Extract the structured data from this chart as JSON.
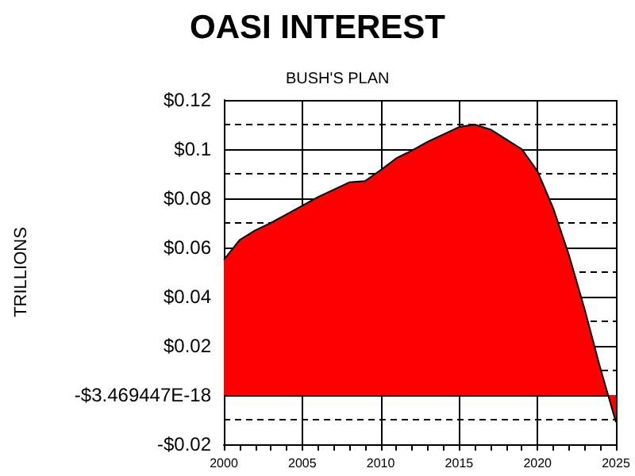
{
  "chart_data": {
    "type": "area",
    "title": "OASI INTEREST",
    "subtitle": "BUSH'S PLAN",
    "ylabel": "TRILLIONS",
    "x": [
      2000,
      2001,
      2002,
      2003,
      2004,
      2005,
      2006,
      2007,
      2008,
      2009,
      2010,
      2011,
      2012,
      2013,
      2014,
      2015,
      2016,
      2017,
      2018,
      2019,
      2020,
      2021,
      2022,
      2023,
      2024,
      2024.5,
      2025
    ],
    "series": [
      {
        "color": "#ff0000",
        "values": [
          0.055,
          0.063,
          0.067,
          0.07,
          0.0735,
          0.077,
          0.0805,
          0.0835,
          0.0865,
          0.087,
          0.0915,
          0.0963,
          0.0995,
          0.103,
          0.106,
          0.109,
          0.11,
          0.108,
          0.104,
          0.1,
          0.091,
          0.076,
          0.057,
          0.035,
          0.011,
          0,
          -0.011
        ]
      }
    ],
    "xlim": [
      2000,
      2025
    ],
    "xticks": [
      2000,
      2005,
      2010,
      2015,
      2020,
      2025
    ],
    "ylim": [
      -0.02,
      0.12
    ],
    "yticks": [
      {
        "value": -0.02,
        "label": "-$0.02"
      },
      {
        "value": -0.01,
        "label": null
      },
      {
        "value": 0,
        "label": "-$3.469447E-18"
      },
      {
        "value": 0.01,
        "label": null
      },
      {
        "value": 0.02,
        "label": "$0.02"
      },
      {
        "value": 0.03,
        "label": null
      },
      {
        "value": 0.04,
        "label": "$0.04"
      },
      {
        "value": 0.05,
        "label": null
      },
      {
        "value": 0.06,
        "label": "$0.06"
      },
      {
        "value": 0.07,
        "label": null
      },
      {
        "value": 0.08,
        "label": "$0.08"
      },
      {
        "value": 0.09,
        "label": null
      },
      {
        "value": 0.1,
        "label": "$0.1"
      },
      {
        "value": 0.11,
        "label": null
      },
      {
        "value": 0.12,
        "label": "$0.12"
      }
    ],
    "grid": true,
    "marker": "none",
    "line_style": "solid"
  }
}
